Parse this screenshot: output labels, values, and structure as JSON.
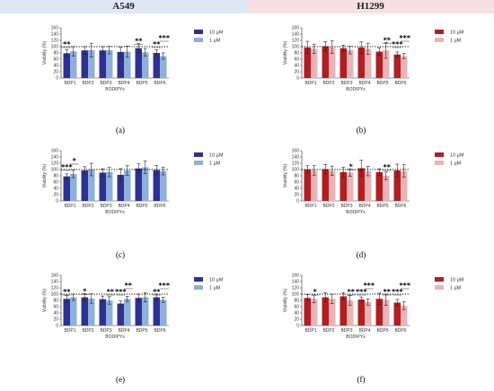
{
  "headers": {
    "left": "A549",
    "right": "H1299"
  },
  "colors": {
    "a549_10": "#2e3192",
    "a549_1": "#8fb0dc",
    "h1299_10": "#b11f24",
    "h1299_1": "#e8b4b8"
  },
  "chart_data": [
    {
      "type": "bar",
      "panel": "(a)",
      "cell_line": "A549",
      "categories": [
        "BDP1",
        "BDP2",
        "BDP3",
        "BDP4",
        "BDP5",
        "BDP6"
      ],
      "xlabel": "BODIPYs",
      "ylabel": "Viability (%)",
      "ylim": [
        0,
        160
      ],
      "yticks": [
        0,
        20,
        40,
        60,
        80,
        100,
        120,
        140,
        160
      ],
      "reference_line": 100,
      "legend": "right",
      "series": [
        {
          "name": "10 µM",
          "color": "#2e3192",
          "values": [
            79,
            88,
            88,
            83,
            95,
            80
          ],
          "errors": [
            12,
            12,
            12,
            15,
            15,
            10
          ]
        },
        {
          "name": "1 µM",
          "color": "#8fb0dc",
          "values": [
            85,
            89,
            89,
            84,
            82,
            70
          ],
          "errors": [
            15,
            22,
            12,
            18,
            12,
            10
          ]
        }
      ],
      "annotations": [
        {
          "category": "BDP1",
          "text": "**",
          "series": 0
        },
        {
          "category": "BDP5",
          "text": "**",
          "series": 0
        },
        {
          "category": "BDP6",
          "text": "**",
          "series": 0
        },
        {
          "category": "BDP6",
          "text": "***",
          "series": 1
        }
      ]
    },
    {
      "type": "bar",
      "panel": "(b)",
      "cell_line": "H1299",
      "categories": [
        "BDP1",
        "BDP2",
        "BDP3",
        "BDP4",
        "BDP5",
        "BDP6"
      ],
      "xlabel": "BODIPYs",
      "ylabel": "Viability (%)",
      "ylim": [
        0,
        160
      ],
      "yticks": [
        0,
        20,
        40,
        60,
        80,
        100,
        120,
        140,
        160
      ],
      "reference_line": 100,
      "legend": "right",
      "series": [
        {
          "name": "10 µM",
          "color": "#b11f24",
          "values": [
            97,
            101,
            95,
            97,
            84,
            75
          ],
          "errors": [
            20,
            15,
            10,
            18,
            12,
            8
          ]
        },
        {
          "name": "1 µM",
          "color": "#e8b4b8",
          "values": [
            93,
            98,
            89,
            93,
            88,
            70
          ],
          "errors": [
            15,
            20,
            12,
            18,
            25,
            8
          ]
        }
      ],
      "annotations": [
        {
          "category": "BDP5",
          "text": "**",
          "series": 1
        },
        {
          "category": "BDP6",
          "text": "***",
          "series": 0
        },
        {
          "category": "BDP6",
          "text": "***",
          "series": 1
        }
      ]
    },
    {
      "type": "bar",
      "panel": "(c)",
      "cell_line": "A549",
      "categories": [
        "BDP1",
        "BDP2",
        "BDP3",
        "BDP4",
        "BDP5",
        "BDP6"
      ],
      "xlabel": "BODIPYs",
      "ylabel": "Viability (%)",
      "ylim": [
        0,
        160
      ],
      "yticks": [
        0,
        20,
        40,
        60,
        80,
        100,
        120,
        140,
        160
      ],
      "reference_line": 100,
      "legend": "right",
      "series": [
        {
          "name": "10 µM",
          "color": "#2e3192",
          "values": [
            78,
            97,
            90,
            83,
            103,
            98
          ],
          "errors": [
            8,
            12,
            12,
            20,
            15,
            15
          ]
        },
        {
          "name": "1 µM",
          "color": "#8fb0dc",
          "values": [
            86,
            100,
            92,
            97,
            107,
            95
          ],
          "errors": [
            12,
            20,
            15,
            15,
            20,
            12
          ]
        }
      ],
      "annotations": [
        {
          "category": "BDP1",
          "text": "***",
          "series": 0
        },
        {
          "category": "BDP1",
          "text": "*",
          "series": 1
        }
      ]
    },
    {
      "type": "bar",
      "panel": "(d)",
      "cell_line": "H1299",
      "categories": [
        "BDP1",
        "BDP2",
        "BDP3",
        "BDP4",
        "BDP5",
        "BDP6"
      ],
      "xlabel": "BODIPYs",
      "ylabel": "Viability (%)",
      "ylim": [
        0,
        160
      ],
      "yticks": [
        0,
        20,
        40,
        60,
        80,
        100,
        120,
        140,
        160
      ],
      "reference_line": 100,
      "legend": "right",
      "series": [
        {
          "name": "10 µM",
          "color": "#b11f24",
          "values": [
            100,
            101,
            92,
            104,
            92,
            97
          ],
          "errors": [
            12,
            15,
            15,
            25,
            10,
            20
          ]
        },
        {
          "name": "1 µM",
          "color": "#e8b4b8",
          "values": [
            97,
            96,
            90,
            95,
            80,
            95
          ],
          "errors": [
            15,
            15,
            12,
            15,
            12,
            20
          ]
        }
      ],
      "annotations": [
        {
          "category": "BDP3",
          "text": "*",
          "series": 1
        },
        {
          "category": "BDP5",
          "text": "**",
          "series": 1
        }
      ]
    },
    {
      "type": "bar",
      "panel": "(e)",
      "cell_line": "A549",
      "categories": [
        "BDP1",
        "BDP2",
        "BDP3",
        "BDP4",
        "BDP5",
        "BDP6"
      ],
      "xlabel": "BODIPYs",
      "ylabel": "Viability (%)",
      "ylim": [
        0,
        160
      ],
      "yticks": [
        0,
        20,
        40,
        60,
        80,
        100,
        120,
        140,
        160
      ],
      "reference_line": 100,
      "legend": "right",
      "series": [
        {
          "name": "10 µM",
          "color": "#2e3192",
          "values": [
            85,
            90,
            84,
            70,
            88,
            90
          ],
          "errors": [
            10,
            12,
            10,
            8,
            12,
            10
          ]
        },
        {
          "name": "1 µM",
          "color": "#8fb0dc",
          "values": [
            90,
            86,
            80,
            85,
            90,
            82
          ],
          "errors": [
            10,
            15,
            12,
            8,
            15,
            8
          ]
        }
      ],
      "annotations": [
        {
          "category": "BDP1",
          "text": "**",
          "series": 0
        },
        {
          "category": "BDP2",
          "text": "*",
          "series": 0
        },
        {
          "category": "BDP3",
          "text": "**",
          "series": 1
        },
        {
          "category": "BDP4",
          "text": "***",
          "series": 0
        },
        {
          "category": "BDP4",
          "text": "**",
          "series": 1
        },
        {
          "category": "BDP6",
          "text": "**",
          "series": 0
        },
        {
          "category": "BDP6",
          "text": "***",
          "series": 1
        }
      ]
    },
    {
      "type": "bar",
      "panel": "(f)",
      "cell_line": "H1299",
      "categories": [
        "BDP1",
        "BDP2",
        "BDP3",
        "BDP4",
        "BDP5",
        "BDP6"
      ],
      "xlabel": "BODIPYs",
      "ylabel": "Viability (%)",
      "ylim": [
        0,
        160
      ],
      "yticks": [
        0,
        20,
        40,
        60,
        80,
        100,
        120,
        140,
        160
      ],
      "reference_line": 100,
      "legend": "right",
      "series": [
        {
          "name": "10 µM",
          "color": "#b11f24",
          "values": [
            88,
            90,
            93,
            83,
            85,
            73
          ],
          "errors": [
            10,
            15,
            12,
            8,
            18,
            10
          ]
        },
        {
          "name": "1 µM",
          "color": "#e8b4b8",
          "values": [
            85,
            85,
            80,
            75,
            82,
            63
          ],
          "errors": [
            12,
            15,
            15,
            10,
            18,
            12
          ]
        }
      ],
      "annotations": [
        {
          "category": "BDP1",
          "text": "*",
          "series": 1
        },
        {
          "category": "BDP3",
          "text": "**",
          "series": 1
        },
        {
          "category": "BDP4",
          "text": "***",
          "series": 0
        },
        {
          "category": "BDP4",
          "text": "***",
          "series": 1
        },
        {
          "category": "BDP5",
          "text": "**",
          "series": 1
        },
        {
          "category": "BDP6",
          "text": "***",
          "series": 0
        },
        {
          "category": "BDP6",
          "text": "***",
          "series": 1
        }
      ]
    }
  ]
}
